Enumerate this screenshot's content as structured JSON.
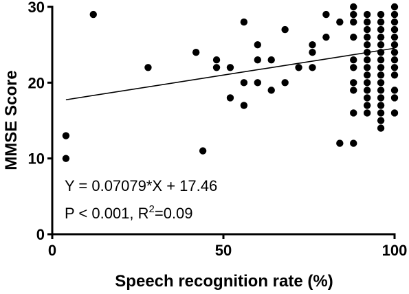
{
  "chart_data": {
    "type": "scatter",
    "xlabel": "Speech recognition rate (%)",
    "ylabel": "MMSE Score",
    "xlim": [
      0,
      100
    ],
    "ylim": [
      0,
      30
    ],
    "x_ticks": [
      0,
      50,
      100
    ],
    "y_ticks": [
      0,
      10,
      20,
      30
    ],
    "grid": false,
    "legend": "none",
    "annotations": {
      "equation": "Y = 0.07079*X + 17.46",
      "stats_prefix": "P < 0.001, R",
      "stats_sup": "2",
      "stats_suffix": "=0.09"
    },
    "regression": {
      "slope": 0.07079,
      "intercept": 17.46,
      "x_range": [
        4,
        100
      ]
    },
    "series": [
      {
        "points": [
          [
            4,
            13
          ],
          [
            4,
            10
          ],
          [
            12,
            29
          ],
          [
            28,
            22
          ],
          [
            42,
            24
          ],
          [
            44,
            11
          ],
          [
            48,
            23
          ],
          [
            48,
            22
          ],
          [
            52,
            22
          ],
          [
            52,
            18
          ],
          [
            56,
            28
          ],
          [
            56,
            20
          ],
          [
            56,
            17
          ],
          [
            60,
            25
          ],
          [
            60,
            23
          ],
          [
            60,
            20
          ],
          [
            64,
            23
          ],
          [
            64,
            19
          ],
          [
            68,
            27
          ],
          [
            68,
            20
          ],
          [
            72,
            22
          ],
          [
            76,
            25
          ],
          [
            76,
            24
          ],
          [
            76,
            22
          ],
          [
            80,
            29
          ],
          [
            80,
            26
          ],
          [
            84,
            28
          ],
          [
            84,
            12
          ],
          [
            88,
            30
          ],
          [
            88,
            29
          ],
          [
            88,
            28
          ],
          [
            88,
            26
          ],
          [
            88,
            23
          ],
          [
            88,
            22
          ],
          [
            88,
            20
          ],
          [
            88,
            19
          ],
          [
            88,
            16
          ],
          [
            88,
            12
          ],
          [
            92,
            29
          ],
          [
            92,
            28
          ],
          [
            92,
            27
          ],
          [
            92,
            26
          ],
          [
            92,
            25
          ],
          [
            92,
            24
          ],
          [
            92,
            23
          ],
          [
            92,
            22
          ],
          [
            92,
            21
          ],
          [
            92,
            20
          ],
          [
            92,
            19
          ],
          [
            92,
            18
          ],
          [
            92,
            17
          ],
          [
            92,
            16
          ],
          [
            96,
            29
          ],
          [
            96,
            28
          ],
          [
            96,
            27
          ],
          [
            96,
            26
          ],
          [
            96,
            25
          ],
          [
            96,
            24
          ],
          [
            96,
            23
          ],
          [
            96,
            22
          ],
          [
            96,
            21
          ],
          [
            96,
            20
          ],
          [
            96,
            19
          ],
          [
            96,
            18
          ],
          [
            96,
            17
          ],
          [
            96,
            16
          ],
          [
            96,
            15
          ],
          [
            96,
            14
          ],
          [
            100,
            30
          ],
          [
            100,
            29
          ],
          [
            100,
            28
          ],
          [
            100,
            27
          ],
          [
            100,
            26
          ],
          [
            100,
            25
          ],
          [
            100,
            24
          ],
          [
            100,
            23
          ],
          [
            100,
            22
          ],
          [
            100,
            21
          ],
          [
            100,
            19
          ],
          [
            100,
            18
          ],
          [
            100,
            16
          ]
        ]
      }
    ]
  }
}
